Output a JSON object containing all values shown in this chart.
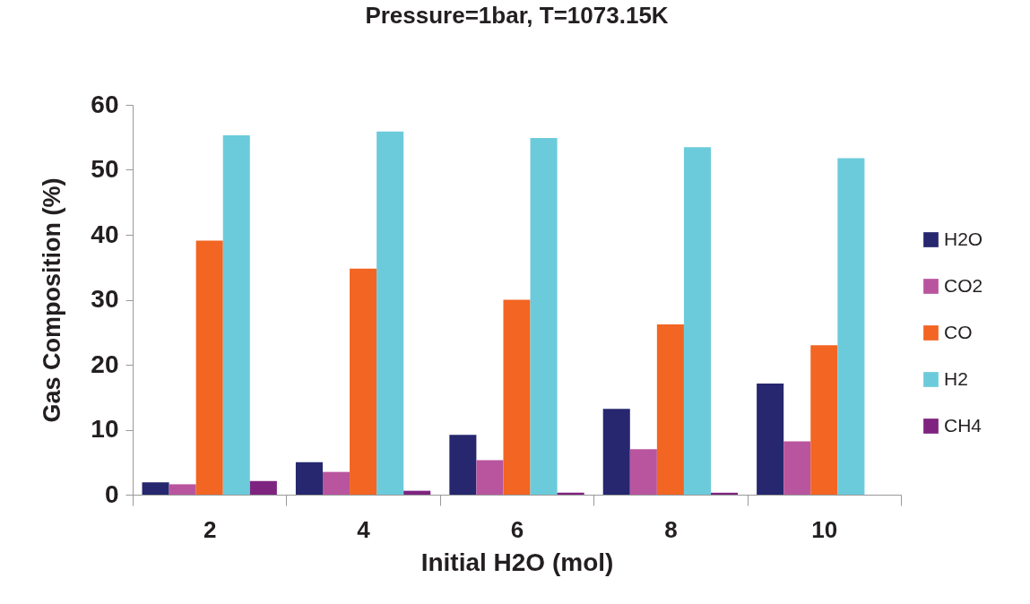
{
  "chart_data": {
    "type": "bar",
    "title": "Pressure=1bar, T=1073.15K",
    "xlabel": "Initial H2O (mol)",
    "ylabel": "Gas Composition (%)",
    "categories": [
      "2",
      "4",
      "6",
      "8",
      "10"
    ],
    "series": [
      {
        "name": "H2O",
        "color": "#26276f",
        "values": [
          1.9,
          5.0,
          9.2,
          13.2,
          17.1
        ]
      },
      {
        "name": "CO2",
        "color": "#b9559e",
        "values": [
          1.6,
          3.5,
          5.3,
          7.0,
          8.2
        ]
      },
      {
        "name": "CO",
        "color": "#f26522",
        "values": [
          39.1,
          34.8,
          30.0,
          26.2,
          23.0
        ]
      },
      {
        "name": "H2",
        "color": "#6ccbdb",
        "values": [
          55.3,
          55.9,
          54.9,
          53.5,
          51.8
        ]
      },
      {
        "name": "CH4",
        "color": "#7e2480",
        "values": [
          2.1,
          0.6,
          0.3,
          0.3,
          0
        ]
      }
    ],
    "ylim": [
      0,
      60
    ],
    "yticks": [
      0,
      10,
      20,
      30,
      40,
      50,
      60
    ],
    "grid": false,
    "legend": "right"
  }
}
